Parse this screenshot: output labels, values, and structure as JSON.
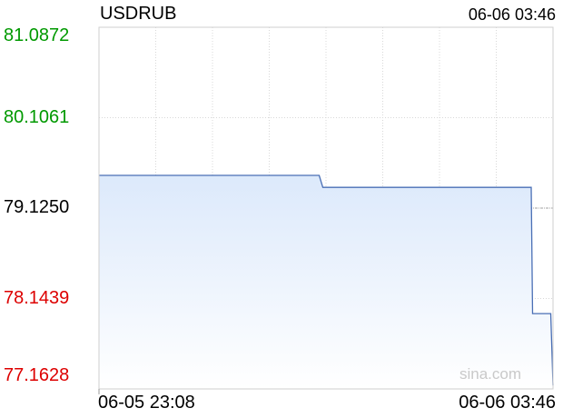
{
  "header": {
    "symbol": "USDRUB",
    "timestamp": "06-06 03:46"
  },
  "watermark": "sina.com",
  "colors": {
    "up": "#009900",
    "down": "#dd0000",
    "neutral": "#000000",
    "line": "#4a6fb5",
    "fill_top": "#dce9fb",
    "grid": "#d8d8d8"
  },
  "chart_data": {
    "type": "area",
    "symbol": "USDRUB",
    "x_labels": [
      "06-05 23:08",
      "06-06 03:46"
    ],
    "y_ticks": [
      {
        "label": "81.0872",
        "value": 81.0872,
        "color": "up"
      },
      {
        "label": "80.1061",
        "value": 80.1061,
        "color": "up"
      },
      {
        "label": "79.1250",
        "value": 79.125,
        "color": "neutral"
      },
      {
        "label": "78.1439",
        "value": 78.1439,
        "color": "down"
      },
      {
        "label": "77.1628",
        "value": 77.1628,
        "color": "down"
      }
    ],
    "ylim": [
      77.1628,
      81.0872
    ],
    "reference_value": 79.125,
    "xlim": [
      0,
      100
    ],
    "series": [
      {
        "x": [
          0,
          48.5,
          49.3,
          95.2,
          95.5,
          99.5,
          100
        ],
        "y": [
          79.48,
          79.48,
          79.35,
          79.35,
          77.98,
          77.98,
          77.2
        ]
      }
    ],
    "grid": true,
    "vertical_gridlines": 7
  }
}
